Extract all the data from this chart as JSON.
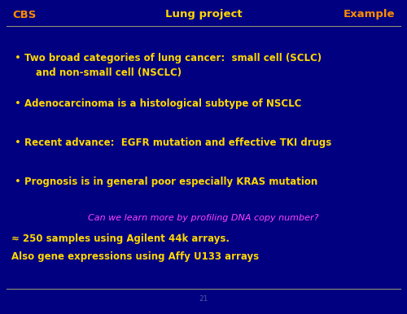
{
  "bg_color": "#000080",
  "header_left": "CBS",
  "header_center": "Lung project",
  "header_right": "Example",
  "header_left_color": "#FF8C00",
  "header_center_color": "#FFD700",
  "header_right_color": "#FF8C00",
  "header_line_color": "#909070",
  "footer_line_color": "#909070",
  "footer_number": "21",
  "footer_number_color": "#5555AA",
  "bullet_color": "#FFD700",
  "bullet_text_color": "#FFD700",
  "bullet1_line1": "Two broad categories of lung cancer:  small cell (SCLC)",
  "bullet1_line2": "and non-small cell (NSCLC)",
  "bullet2": "Adenocarcinoma is a histological subtype of NSCLC",
  "bullet3": "Recent advance:  EGFR mutation and effective TKI drugs",
  "bullet4": "Prognosis is in general poor especially KRAS mutation",
  "question_text": "Can we learn more by profiling DNA copy number?",
  "question_color": "#FF44FF",
  "extra_line1": "≈ 250 samples using Agilent 44k arrays.",
  "extra_line2": "Also gene expressions using Affy U133 arrays",
  "extra_color": "#FFD700",
  "font_size_header": 9.5,
  "font_size_body": 8.5,
  "font_size_question": 8.0,
  "font_size_footer": 6.5
}
